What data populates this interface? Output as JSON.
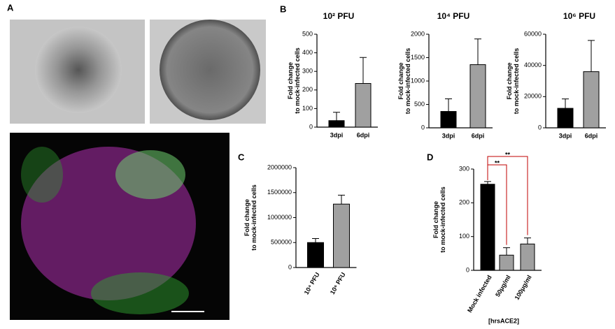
{
  "panel_labels": [
    "A",
    "B",
    "C",
    "D"
  ],
  "chart_data": [
    {
      "type": "bar",
      "title": "10² PFU",
      "ylabel": [
        "Fold change",
        "to mock-infected cells"
      ],
      "categories": [
        "3dpi",
        "6dpi"
      ],
      "values": [
        35,
        235
      ],
      "errors": [
        45,
        140
      ],
      "colors": [
        "#000000",
        "#a0a0a0"
      ],
      "ylim": [
        0,
        500
      ],
      "yticks": [
        0,
        100,
        200,
        300,
        400,
        500
      ]
    },
    {
      "type": "bar",
      "title": "10⁴ PFU",
      "ylabel": [
        "Fold change",
        "to mock-infected cells"
      ],
      "categories": [
        "3dpi",
        "6dpi"
      ],
      "values": [
        350,
        1350
      ],
      "errors": [
        270,
        550
      ],
      "colors": [
        "#000000",
        "#a0a0a0"
      ],
      "ylim": [
        0,
        2000
      ],
      "yticks": [
        0,
        500,
        1000,
        1500,
        2000
      ]
    },
    {
      "type": "bar",
      "title": "10⁶ PFU",
      "ylabel": [
        "Fold change",
        "to mock-infected cells"
      ],
      "categories": [
        "3dpi",
        "6dpi"
      ],
      "values": [
        12500,
        36000
      ],
      "errors": [
        6000,
        20000
      ],
      "colors": [
        "#000000",
        "#a0a0a0"
      ],
      "ylim": [
        0,
        60000
      ],
      "yticks": [
        0,
        20000,
        40000,
        60000
      ]
    },
    {
      "type": "bar",
      "ylabel": [
        "Fold change",
        "to mock-infected cells"
      ],
      "categories": [
        "10⁴ PFU",
        "10⁶ PFU"
      ],
      "values": [
        500000,
        1270000
      ],
      "errors": [
        80000,
        180000
      ],
      "colors": [
        "#000000",
        "#a0a0a0"
      ],
      "ylim": [
        0,
        2000000
      ],
      "yticks": [
        0,
        500000,
        1000000,
        1500000,
        2000000
      ]
    },
    {
      "type": "bar",
      "ylabel": [
        "Fold change",
        "to mock-infected cells"
      ],
      "xlabel": "[hrsACE2]",
      "categories": [
        "Mock infected",
        "50μg/ml",
        "100μg/ml"
      ],
      "values": [
        255,
        45,
        78
      ],
      "errors": [
        8,
        22,
        18
      ],
      "colors": [
        "#000000",
        "#a0a0a0",
        "#a0a0a0"
      ],
      "ylim": [
        0,
        300
      ],
      "yticks": [
        0,
        100,
        200,
        300
      ],
      "annotations": [
        "**",
        "**"
      ]
    }
  ]
}
